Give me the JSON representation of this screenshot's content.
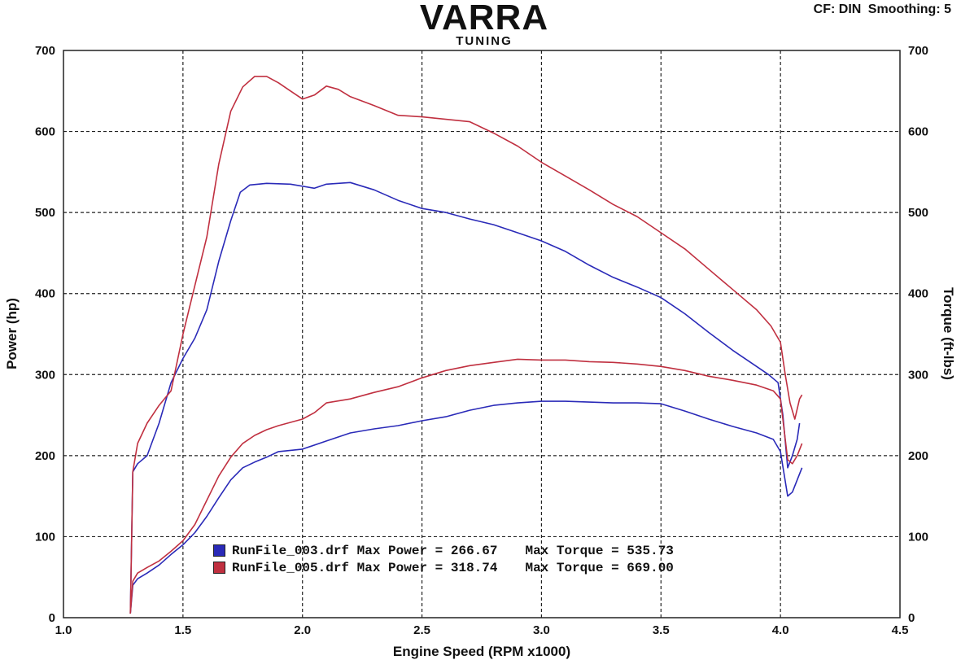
{
  "brand": {
    "logo": "VARRA",
    "sub": "TUNING"
  },
  "header": {
    "cf": "CF: DIN",
    "smoothing": "Smoothing: 5"
  },
  "chart_data": {
    "type": "line",
    "xlabel": "Engine Speed (RPM x1000)",
    "ylabel": "Power (hp)",
    "y2label": "Torque (ft-lbs)",
    "xlim": [
      1.0,
      4.5
    ],
    "ylim": [
      0,
      700
    ],
    "y2lim": [
      0,
      700
    ],
    "xticks": [
      "1.0",
      "1.5",
      "2.0",
      "2.5",
      "3.0",
      "3.5",
      "4.0",
      "4.5"
    ],
    "yticks": [
      "0",
      "100",
      "200",
      "300",
      "400",
      "500",
      "600",
      "700"
    ],
    "grid": true,
    "legend_position": "bottom-left",
    "series": [
      {
        "name": "RunFile_003.drf",
        "color": "#2a2ab8",
        "max_power_label": "Max Power = 266.67",
        "max_torque_label": "Max Torque = 535.73",
        "power": [
          [
            1.28,
            5
          ],
          [
            1.29,
            40
          ],
          [
            1.31,
            48
          ],
          [
            1.35,
            55
          ],
          [
            1.4,
            65
          ],
          [
            1.45,
            78
          ],
          [
            1.5,
            90
          ],
          [
            1.55,
            105
          ],
          [
            1.6,
            125
          ],
          [
            1.65,
            148
          ],
          [
            1.7,
            170
          ],
          [
            1.75,
            185
          ],
          [
            1.8,
            192
          ],
          [
            1.85,
            198
          ],
          [
            1.9,
            205
          ],
          [
            2.0,
            208
          ],
          [
            2.1,
            218
          ],
          [
            2.2,
            228
          ],
          [
            2.3,
            233
          ],
          [
            2.4,
            237
          ],
          [
            2.5,
            243
          ],
          [
            2.6,
            248
          ],
          [
            2.7,
            256
          ],
          [
            2.8,
            262
          ],
          [
            2.9,
            265
          ],
          [
            3.0,
            267
          ],
          [
            3.1,
            267
          ],
          [
            3.2,
            266
          ],
          [
            3.3,
            265
          ],
          [
            3.4,
            265
          ],
          [
            3.5,
            264
          ],
          [
            3.6,
            255
          ],
          [
            3.7,
            245
          ],
          [
            3.8,
            236
          ],
          [
            3.9,
            228
          ],
          [
            3.97,
            220
          ],
          [
            4.0,
            205
          ],
          [
            4.03,
            150
          ],
          [
            4.05,
            155
          ],
          [
            4.07,
            170
          ],
          [
            4.09,
            185
          ]
        ],
        "torque": [
          [
            1.28,
            5
          ],
          [
            1.29,
            180
          ],
          [
            1.31,
            190
          ],
          [
            1.35,
            200
          ],
          [
            1.4,
            240
          ],
          [
            1.45,
            290
          ],
          [
            1.5,
            320
          ],
          [
            1.55,
            345
          ],
          [
            1.6,
            380
          ],
          [
            1.65,
            440
          ],
          [
            1.7,
            490
          ],
          [
            1.74,
            525
          ],
          [
            1.78,
            534
          ],
          [
            1.85,
            536
          ],
          [
            1.95,
            535
          ],
          [
            2.05,
            530
          ],
          [
            2.1,
            535
          ],
          [
            2.2,
            537
          ],
          [
            2.3,
            528
          ],
          [
            2.4,
            515
          ],
          [
            2.5,
            505
          ],
          [
            2.6,
            500
          ],
          [
            2.7,
            492
          ],
          [
            2.8,
            485
          ],
          [
            2.9,
            475
          ],
          [
            3.0,
            465
          ],
          [
            3.1,
            452
          ],
          [
            3.2,
            435
          ],
          [
            3.3,
            420
          ],
          [
            3.4,
            408
          ],
          [
            3.5,
            395
          ],
          [
            3.6,
            375
          ],
          [
            3.7,
            352
          ],
          [
            3.8,
            330
          ],
          [
            3.9,
            310
          ],
          [
            3.95,
            300
          ],
          [
            3.99,
            290
          ],
          [
            4.01,
            250
          ],
          [
            4.03,
            185
          ],
          [
            4.05,
            200
          ],
          [
            4.07,
            220
          ],
          [
            4.08,
            240
          ]
        ]
      },
      {
        "name": "RunFile_005.drf",
        "color": "#c03040",
        "max_power_label": "Max Power = 318.74",
        "max_torque_label": "Max Torque = 669.00",
        "power": [
          [
            1.28,
            5
          ],
          [
            1.29,
            45
          ],
          [
            1.31,
            55
          ],
          [
            1.35,
            62
          ],
          [
            1.4,
            70
          ],
          [
            1.45,
            82
          ],
          [
            1.5,
            95
          ],
          [
            1.55,
            115
          ],
          [
            1.6,
            145
          ],
          [
            1.65,
            175
          ],
          [
            1.7,
            198
          ],
          [
            1.75,
            215
          ],
          [
            1.8,
            225
          ],
          [
            1.85,
            232
          ],
          [
            1.9,
            237
          ],
          [
            2.0,
            245
          ],
          [
            2.05,
            253
          ],
          [
            2.1,
            265
          ],
          [
            2.2,
            270
          ],
          [
            2.3,
            278
          ],
          [
            2.4,
            285
          ],
          [
            2.5,
            296
          ],
          [
            2.6,
            305
          ],
          [
            2.7,
            311
          ],
          [
            2.8,
            315
          ],
          [
            2.9,
            319
          ],
          [
            3.0,
            318
          ],
          [
            3.1,
            318
          ],
          [
            3.2,
            316
          ],
          [
            3.3,
            315
          ],
          [
            3.4,
            313
          ],
          [
            3.5,
            310
          ],
          [
            3.6,
            305
          ],
          [
            3.7,
            298
          ],
          [
            3.8,
            293
          ],
          [
            3.9,
            287
          ],
          [
            3.97,
            280
          ],
          [
            4.0,
            270
          ],
          [
            4.03,
            195
          ],
          [
            4.05,
            190
          ],
          [
            4.07,
            200
          ],
          [
            4.09,
            215
          ]
        ],
        "torque": [
          [
            1.28,
            5
          ],
          [
            1.29,
            180
          ],
          [
            1.31,
            215
          ],
          [
            1.35,
            240
          ],
          [
            1.4,
            262
          ],
          [
            1.45,
            280
          ],
          [
            1.5,
            350
          ],
          [
            1.55,
            410
          ],
          [
            1.6,
            470
          ],
          [
            1.65,
            560
          ],
          [
            1.7,
            625
          ],
          [
            1.75,
            655
          ],
          [
            1.8,
            668
          ],
          [
            1.85,
            668
          ],
          [
            1.9,
            660
          ],
          [
            1.95,
            650
          ],
          [
            2.0,
            640
          ],
          [
            2.05,
            645
          ],
          [
            2.1,
            656
          ],
          [
            2.15,
            652
          ],
          [
            2.2,
            643
          ],
          [
            2.3,
            632
          ],
          [
            2.4,
            620
          ],
          [
            2.5,
            618
          ],
          [
            2.6,
            615
          ],
          [
            2.7,
            612
          ],
          [
            2.8,
            598
          ],
          [
            2.9,
            582
          ],
          [
            3.0,
            562
          ],
          [
            3.1,
            545
          ],
          [
            3.2,
            528
          ],
          [
            3.3,
            510
          ],
          [
            3.4,
            495
          ],
          [
            3.5,
            475
          ],
          [
            3.6,
            455
          ],
          [
            3.7,
            430
          ],
          [
            3.8,
            405
          ],
          [
            3.9,
            380
          ],
          [
            3.96,
            360
          ],
          [
            4.0,
            340
          ],
          [
            4.02,
            300
          ],
          [
            4.04,
            265
          ],
          [
            4.06,
            245
          ],
          [
            4.08,
            270
          ],
          [
            4.09,
            275
          ]
        ]
      }
    ]
  }
}
